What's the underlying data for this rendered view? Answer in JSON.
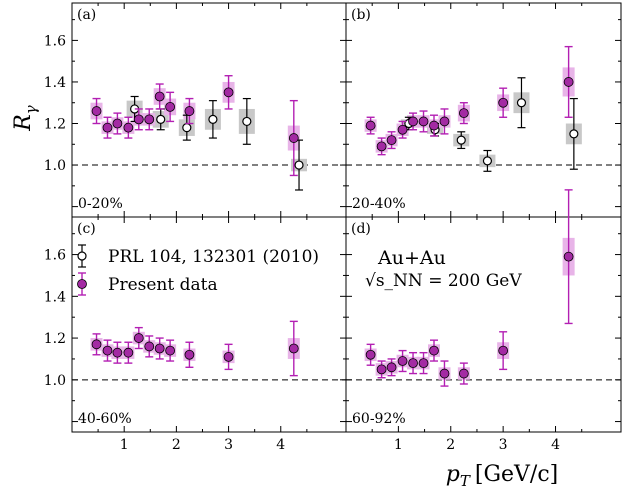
{
  "chart_data": {
    "type": "scatter",
    "ylabel": "R",
    "ylabel_sub": "γ",
    "xlabel": "p",
    "xlabel_sub": "T",
    "xlabel_unit": "[GeV/c]",
    "xlim": [
      0,
      5.25
    ],
    "ylim": [
      0.75,
      1.78
    ],
    "x_ticks": [
      1,
      2,
      3,
      4
    ],
    "y_ticks": [
      1.0,
      1.2,
      1.4,
      1.6
    ],
    "y_tick_labels": [
      "1.0",
      "1.2",
      "1.4",
      "1.6"
    ],
    "reference_line": 1.0,
    "legend": {
      "entries": [
        "PRL 104, 132301 (2010)",
        "Present data"
      ],
      "system": "Au+Au",
      "energy": "√s_NN = 200 GeV"
    },
    "colors": {
      "present": "#b31fb3",
      "present_fill": "#a32aa3",
      "present_sys": "#e8b4e8",
      "prl": "#000000",
      "prl_sys": "#c8c8c8"
    },
    "panels": [
      {
        "tag": "(a)",
        "centrality": "0-20%",
        "series": [
          {
            "name": "Present data",
            "points": [
              {
                "x": 0.47,
                "y": 1.26,
                "err": 0.06,
                "sys": 0.04
              },
              {
                "x": 0.68,
                "y": 1.18,
                "err": 0.05,
                "sys": 0.03
              },
              {
                "x": 0.87,
                "y": 1.2,
                "err": 0.05,
                "sys": 0.03
              },
              {
                "x": 1.08,
                "y": 1.18,
                "err": 0.05,
                "sys": 0.03
              },
              {
                "x": 1.28,
                "y": 1.22,
                "err": 0.05,
                "sys": 0.03
              },
              {
                "x": 1.48,
                "y": 1.22,
                "err": 0.05,
                "sys": 0.03
              },
              {
                "x": 1.68,
                "y": 1.33,
                "err": 0.06,
                "sys": 0.04
              },
              {
                "x": 1.88,
                "y": 1.28,
                "err": 0.07,
                "sys": 0.04
              },
              {
                "x": 2.25,
                "y": 1.26,
                "err": 0.06,
                "sys": 0.04
              },
              {
                "x": 3.0,
                "y": 1.35,
                "err": 0.08,
                "sys": 0.05
              },
              {
                "x": 4.25,
                "y": 1.13,
                "err": 0.18,
                "sys": 0.06
              }
            ]
          },
          {
            "name": "PRL 104, 132301 (2010)",
            "points": [
              {
                "x": 1.2,
                "y": 1.27,
                "err": 0.06,
                "sys": 0.04
              },
              {
                "x": 1.7,
                "y": 1.22,
                "err": 0.05,
                "sys": 0.04
              },
              {
                "x": 2.2,
                "y": 1.18,
                "err": 0.06,
                "sys": 0.04
              },
              {
                "x": 2.7,
                "y": 1.22,
                "err": 0.09,
                "sys": 0.05
              },
              {
                "x": 3.35,
                "y": 1.21,
                "err": 0.11,
                "sys": 0.06
              },
              {
                "x": 4.35,
                "y": 1.0,
                "err": 0.12,
                "sys": 0.03
              }
            ]
          }
        ]
      },
      {
        "tag": "(b)",
        "centrality": "20-40%",
        "series": [
          {
            "name": "Present data",
            "points": [
              {
                "x": 0.47,
                "y": 1.19,
                "err": 0.04,
                "sys": 0.03
              },
              {
                "x": 0.68,
                "y": 1.09,
                "err": 0.04,
                "sys": 0.03
              },
              {
                "x": 0.87,
                "y": 1.12,
                "err": 0.04,
                "sys": 0.03
              },
              {
                "x": 1.08,
                "y": 1.17,
                "err": 0.04,
                "sys": 0.03
              },
              {
                "x": 1.28,
                "y": 1.21,
                "err": 0.04,
                "sys": 0.03
              },
              {
                "x": 1.48,
                "y": 1.21,
                "err": 0.05,
                "sys": 0.03
              },
              {
                "x": 1.68,
                "y": 1.19,
                "err": 0.05,
                "sys": 0.03
              },
              {
                "x": 1.88,
                "y": 1.21,
                "err": 0.06,
                "sys": 0.03
              },
              {
                "x": 2.25,
                "y": 1.25,
                "err": 0.05,
                "sys": 0.04
              },
              {
                "x": 3.0,
                "y": 1.3,
                "err": 0.07,
                "sys": 0.04
              },
              {
                "x": 4.25,
                "y": 1.4,
                "err": 0.17,
                "sys": 0.07
              }
            ]
          },
          {
            "name": "PRL 104, 132301 (2010)",
            "points": [
              {
                "x": 1.2,
                "y": 1.2,
                "err": 0.03,
                "sys": 0.02
              },
              {
                "x": 1.7,
                "y": 1.17,
                "err": 0.03,
                "sys": 0.02
              },
              {
                "x": 2.2,
                "y": 1.12,
                "err": 0.04,
                "sys": 0.03
              },
              {
                "x": 2.7,
                "y": 1.02,
                "err": 0.05,
                "sys": 0.03
              },
              {
                "x": 3.35,
                "y": 1.3,
                "err": 0.12,
                "sys": 0.05
              },
              {
                "x": 4.35,
                "y": 1.15,
                "err": 0.17,
                "sys": 0.05
              }
            ]
          }
        ]
      },
      {
        "tag": "(c)",
        "centrality": "40-60%",
        "series": [
          {
            "name": "Present data",
            "points": [
              {
                "x": 0.47,
                "y": 1.17,
                "err": 0.05,
                "sys": 0.03
              },
              {
                "x": 0.68,
                "y": 1.14,
                "err": 0.05,
                "sys": 0.03
              },
              {
                "x": 0.87,
                "y": 1.13,
                "err": 0.05,
                "sys": 0.03
              },
              {
                "x": 1.08,
                "y": 1.13,
                "err": 0.05,
                "sys": 0.03
              },
              {
                "x": 1.28,
                "y": 1.2,
                "err": 0.05,
                "sys": 0.03
              },
              {
                "x": 1.48,
                "y": 1.16,
                "err": 0.05,
                "sys": 0.03
              },
              {
                "x": 1.68,
                "y": 1.15,
                "err": 0.05,
                "sys": 0.03
              },
              {
                "x": 1.88,
                "y": 1.14,
                "err": 0.05,
                "sys": 0.03
              },
              {
                "x": 2.25,
                "y": 1.12,
                "err": 0.06,
                "sys": 0.03
              },
              {
                "x": 3.0,
                "y": 1.11,
                "err": 0.06,
                "sys": 0.03
              },
              {
                "x": 4.25,
                "y": 1.15,
                "err": 0.13,
                "sys": 0.05
              }
            ]
          }
        ]
      },
      {
        "tag": "(d)",
        "centrality": "60-92%",
        "series": [
          {
            "name": "Present data",
            "points": [
              {
                "x": 0.47,
                "y": 1.12,
                "err": 0.05,
                "sys": 0.03
              },
              {
                "x": 0.68,
                "y": 1.05,
                "err": 0.04,
                "sys": 0.03
              },
              {
                "x": 0.87,
                "y": 1.06,
                "err": 0.04,
                "sys": 0.03
              },
              {
                "x": 1.08,
                "y": 1.09,
                "err": 0.05,
                "sys": 0.03
              },
              {
                "x": 1.28,
                "y": 1.08,
                "err": 0.05,
                "sys": 0.03
              },
              {
                "x": 1.48,
                "y": 1.08,
                "err": 0.05,
                "sys": 0.03
              },
              {
                "x": 1.68,
                "y": 1.14,
                "err": 0.05,
                "sys": 0.03
              },
              {
                "x": 1.88,
                "y": 1.03,
                "err": 0.06,
                "sys": 0.03
              },
              {
                "x": 2.25,
                "y": 1.03,
                "err": 0.05,
                "sys": 0.03
              },
              {
                "x": 3.0,
                "y": 1.14,
                "err": 0.09,
                "sys": 0.04
              },
              {
                "x": 4.25,
                "y": 1.59,
                "err": 0.32,
                "sys": 0.09
              }
            ]
          }
        ]
      }
    ]
  }
}
